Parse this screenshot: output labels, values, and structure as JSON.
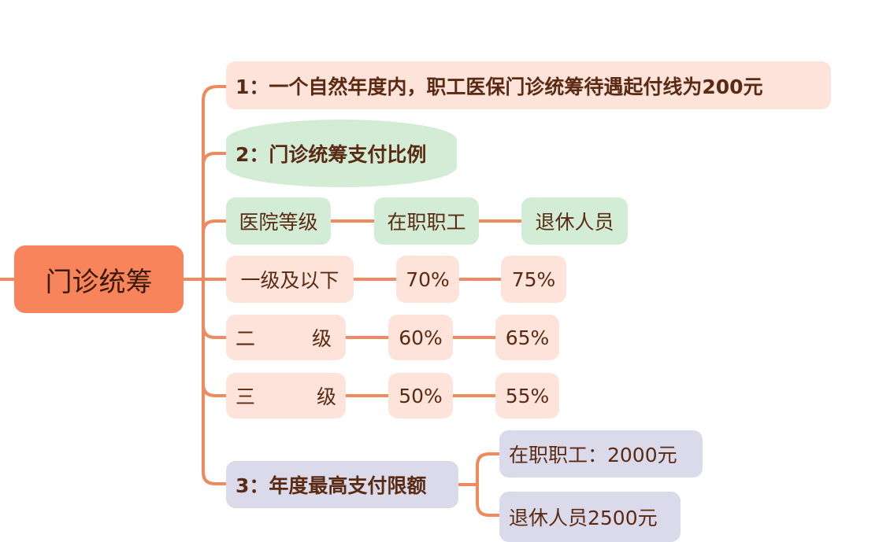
{
  "root": {
    "label": "门诊统筹"
  },
  "colors": {
    "root": "#f7845a",
    "line": "#ef8a5e",
    "pink": "#fde3da",
    "green": "#d3ecd5",
    "lavender": "#dadaea",
    "text": "#5b2a12"
  },
  "branch1": {
    "label": "1：一个自然年度内，职工医保门诊统筹待遇起付线为200元"
  },
  "branch2": {
    "label": "2：门诊统筹支付比例",
    "header": [
      "医院等级",
      "在职职工",
      "退休人员"
    ],
    "rows": [
      {
        "level": "一级及以下",
        "employed": "70%",
        "retired": "75%"
      },
      {
        "level_a": "二",
        "level_b": "级",
        "employed": "60%",
        "retired": "65%"
      },
      {
        "level_a": "三",
        "level_b": "级",
        "employed": "50%",
        "retired": "55%"
      }
    ]
  },
  "branch3": {
    "label": "3：年度最高支付限额",
    "children": [
      "在职职工：2000元",
      "退休人员2500元"
    ]
  }
}
